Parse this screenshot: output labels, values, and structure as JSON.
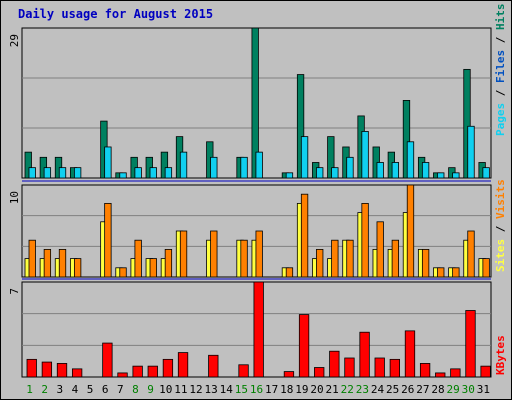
{
  "title": "Daily usage for August 2015",
  "colors": {
    "pages": "#007050",
    "files": "#10d0f0",
    "hits": "#008060",
    "visits": "#ff8000",
    "sites": "#ffff40",
    "kbytes": "#ff0000",
    "weekend_label": "#008000",
    "weekday_label": "#000000",
    "grid": "#808080",
    "separator": "#0000c0"
  },
  "chart_data": [
    {
      "type": "bar",
      "name": "hits-files-pages",
      "categories": [
        "1",
        "2",
        "3",
        "4",
        "5",
        "6",
        "7",
        "8",
        "9",
        "10",
        "11",
        "12",
        "13",
        "14",
        "15",
        "16",
        "17",
        "18",
        "19",
        "20",
        "21",
        "22",
        "23",
        "24",
        "25",
        "26",
        "27",
        "28",
        "29",
        "30",
        "31"
      ],
      "weekend_days": [
        "1",
        "2",
        "8",
        "9",
        "15",
        "16",
        "22",
        "23",
        "29",
        "30"
      ],
      "ymax_label": "29",
      "ymax": 29,
      "side_labels": [
        "Pages",
        "Files",
        "Hits"
      ],
      "series": [
        {
          "name": "Hits",
          "values": [
            5,
            4,
            4,
            2,
            0,
            11,
            1,
            4,
            4,
            5,
            8,
            0,
            7,
            0,
            4,
            29,
            0,
            1,
            20,
            3,
            8,
            6,
            12,
            6,
            5,
            15,
            4,
            1,
            2,
            21,
            3
          ]
        },
        {
          "name": "Files",
          "values": [
            2,
            2,
            2,
            2,
            0,
            6,
            1,
            2,
            2,
            2,
            5,
            0,
            4,
            0,
            4,
            5,
            0,
            1,
            8,
            2,
            2,
            4,
            9,
            3,
            3,
            7,
            3,
            1,
            1,
            10,
            2
          ]
        }
      ]
    },
    {
      "type": "bar",
      "name": "visits-sites",
      "categories": [
        "1",
        "2",
        "3",
        "4",
        "5",
        "6",
        "7",
        "8",
        "9",
        "10",
        "11",
        "12",
        "13",
        "14",
        "15",
        "16",
        "17",
        "18",
        "19",
        "20",
        "21",
        "22",
        "23",
        "24",
        "25",
        "26",
        "27",
        "28",
        "29",
        "30",
        "31"
      ],
      "ymax_label": "10",
      "ymax": 10,
      "side_labels": [
        "Sites",
        "Visits"
      ],
      "series": [
        {
          "name": "Sites",
          "values": [
            2,
            2,
            2,
            2,
            0,
            6,
            1,
            2,
            2,
            2,
            5,
            0,
            4,
            0,
            4,
            4,
            0,
            1,
            8,
            2,
            2,
            4,
            7,
            3,
            3,
            7,
            3,
            1,
            1,
            4,
            2
          ]
        },
        {
          "name": "Visits",
          "values": [
            4,
            3,
            3,
            2,
            0,
            8,
            1,
            4,
            2,
            3,
            5,
            0,
            5,
            0,
            4,
            5,
            0,
            1,
            9,
            3,
            4,
            4,
            8,
            6,
            4,
            10,
            3,
            1,
            1,
            5,
            2
          ]
        }
      ]
    },
    {
      "type": "bar",
      "name": "kbytes",
      "categories": [
        "1",
        "2",
        "3",
        "4",
        "5",
        "6",
        "7",
        "8",
        "9",
        "10",
        "11",
        "12",
        "13",
        "14",
        "15",
        "16",
        "17",
        "18",
        "19",
        "20",
        "21",
        "22",
        "23",
        "24",
        "25",
        "26",
        "27",
        "28",
        "29",
        "30",
        "31"
      ],
      "ymax_label": "7",
      "ymax": 7,
      "side_labels": [
        "KBytes"
      ],
      "series": [
        {
          "name": "KBytes",
          "values": [
            1.3,
            1.1,
            1.0,
            0.6,
            0,
            2.5,
            0.3,
            0.8,
            0.8,
            1.3,
            1.8,
            0,
            1.6,
            0,
            0.9,
            7.0,
            0,
            0.4,
            4.6,
            0.7,
            1.9,
            1.4,
            3.3,
            1.4,
            1.3,
            3.4,
            1.0,
            0.3,
            0.6,
            4.9,
            0.8
          ]
        }
      ]
    }
  ]
}
